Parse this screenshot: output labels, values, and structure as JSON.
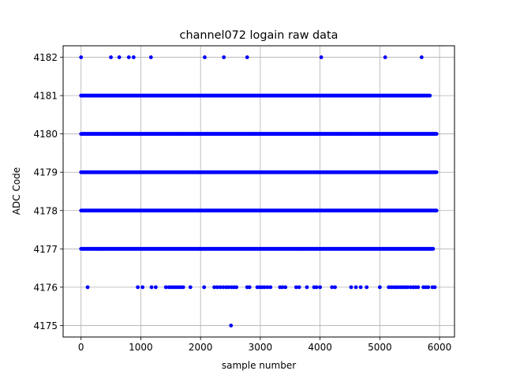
{
  "chart_data": {
    "type": "scatter",
    "title": "channel072 logain raw data",
    "xlabel": "sample number",
    "ylabel": "ADC Code",
    "xlim": [
      -300,
      6250
    ],
    "ylim": [
      4174.7,
      4182.3
    ],
    "xticks": [
      0,
      1000,
      2000,
      3000,
      4000,
      5000,
      6000
    ],
    "xtick_labels": [
      "0",
      "1000",
      "2000",
      "3000",
      "4000",
      "5000",
      "6000"
    ],
    "yticks": [
      4175,
      4176,
      4177,
      4178,
      4179,
      4180,
      4181,
      4182
    ],
    "ytick_labels": [
      "4175",
      "4176",
      "4177",
      "4178",
      "4179",
      "4180",
      "4181",
      "4182"
    ],
    "grid": true,
    "marker_color": "#0000ff",
    "series": [
      {
        "points": [
          [
            0,
            4182
          ],
          [
            500,
            4182
          ],
          [
            640,
            4182
          ],
          [
            800,
            4182
          ],
          [
            880,
            4182
          ],
          [
            1170,
            4182
          ],
          [
            2070,
            4182
          ],
          [
            2390,
            4182
          ],
          [
            2780,
            4182
          ],
          [
            4020,
            4182
          ],
          [
            5090,
            4182
          ],
          [
            5700,
            4182
          ],
          [
            2510,
            4175
          ],
          [
            110,
            4176
          ],
          [
            950,
            4176
          ],
          [
            1030,
            4176
          ],
          [
            1180,
            4176
          ],
          [
            1250,
            4176
          ],
          [
            1420,
            4176
          ],
          [
            1470,
            4176
          ],
          [
            1510,
            4176
          ],
          [
            1550,
            4176
          ],
          [
            1590,
            4176
          ],
          [
            1630,
            4176
          ],
          [
            1670,
            4176
          ],
          [
            1710,
            4176
          ],
          [
            1830,
            4176
          ],
          [
            2060,
            4176
          ],
          [
            2230,
            4176
          ],
          [
            2280,
            4176
          ],
          [
            2330,
            4176
          ],
          [
            2380,
            4176
          ],
          [
            2430,
            4176
          ],
          [
            2470,
            4176
          ],
          [
            2520,
            4176
          ],
          [
            2560,
            4176
          ],
          [
            2600,
            4176
          ],
          [
            2780,
            4176
          ],
          [
            2820,
            4176
          ],
          [
            2950,
            4176
          ],
          [
            2990,
            4176
          ],
          [
            3030,
            4176
          ],
          [
            3070,
            4176
          ],
          [
            3120,
            4176
          ],
          [
            3170,
            4176
          ],
          [
            3330,
            4176
          ],
          [
            3370,
            4176
          ],
          [
            3420,
            4176
          ],
          [
            3600,
            4176
          ],
          [
            3650,
            4176
          ],
          [
            3780,
            4176
          ],
          [
            3900,
            4176
          ],
          [
            3940,
            4176
          ],
          [
            4000,
            4176
          ],
          [
            4200,
            4176
          ],
          [
            4250,
            4176
          ],
          [
            4520,
            4176
          ],
          [
            4600,
            4176
          ],
          [
            4680,
            4176
          ],
          [
            4780,
            4176
          ],
          [
            5000,
            4176
          ],
          [
            5150,
            4176
          ],
          [
            5190,
            4176
          ],
          [
            5230,
            4176
          ],
          [
            5270,
            4176
          ],
          [
            5310,
            4176
          ],
          [
            5350,
            4176
          ],
          [
            5390,
            4176
          ],
          [
            5430,
            4176
          ],
          [
            5470,
            4176
          ],
          [
            5520,
            4176
          ],
          [
            5560,
            4176
          ],
          [
            5600,
            4176
          ],
          [
            5640,
            4176
          ],
          [
            5730,
            4176
          ],
          [
            5770,
            4176
          ],
          [
            5810,
            4176
          ],
          [
            5880,
            4176
          ],
          [
            5920,
            4176
          ]
        ]
      }
    ],
    "dense_rows": [
      {
        "y": 4181,
        "x_min": 0,
        "x_max": 5850,
        "spacing": 14
      },
      {
        "y": 4180,
        "x_min": 0,
        "x_max": 5950,
        "spacing": 10
      },
      {
        "y": 4179,
        "x_min": 0,
        "x_max": 5950,
        "spacing": 9
      },
      {
        "y": 4178,
        "x_min": 0,
        "x_max": 5950,
        "spacing": 9
      },
      {
        "y": 4177,
        "x_min": 0,
        "x_max": 5900,
        "spacing": 12
      }
    ]
  }
}
